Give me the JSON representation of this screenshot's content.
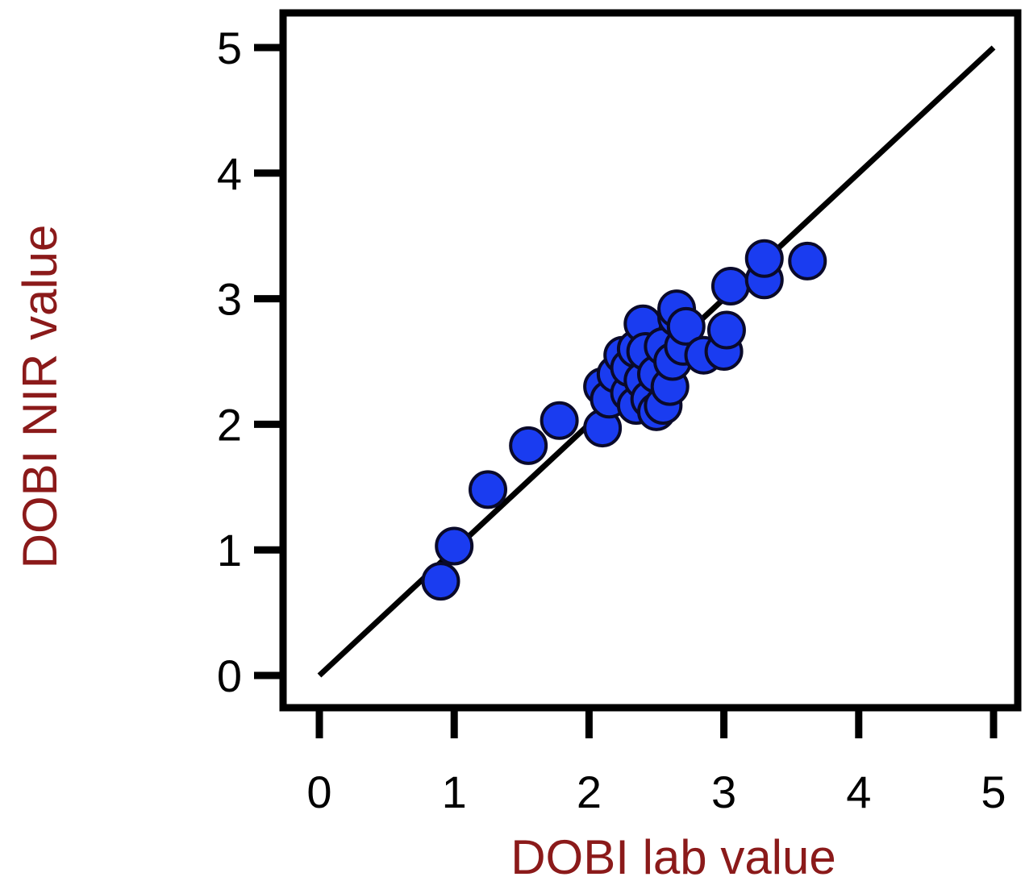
{
  "chart_data": {
    "type": "scatter",
    "title": "",
    "xlabel": "DOBI lab value",
    "ylabel": "DOBI NIR value",
    "xlim": [
      0,
      5
    ],
    "ylim": [
      0,
      5
    ],
    "xticks": [
      "0",
      "1",
      "2",
      "3",
      "4",
      "5"
    ],
    "yticks": [
      "0",
      "1",
      "2",
      "3",
      "4",
      "5"
    ],
    "grid": false,
    "legend": "none",
    "reference_line": {
      "x": [
        0,
        5
      ],
      "y": [
        0,
        5
      ],
      "color": "#000000"
    },
    "series": [
      {
        "marker_color": "#1a3cf0",
        "points": [
          [
            0.9,
            0.75
          ],
          [
            1.0,
            1.03
          ],
          [
            1.25,
            1.48
          ],
          [
            1.55,
            1.83
          ],
          [
            1.78,
            2.03
          ],
          [
            2.1,
            1.97
          ],
          [
            2.1,
            2.3
          ],
          [
            2.15,
            2.2
          ],
          [
            2.2,
            2.4
          ],
          [
            2.25,
            2.55
          ],
          [
            2.3,
            2.25
          ],
          [
            2.3,
            2.45
          ],
          [
            2.35,
            2.15
          ],
          [
            2.35,
            2.6
          ],
          [
            2.4,
            2.35
          ],
          [
            2.4,
            2.8
          ],
          [
            2.42,
            2.58
          ],
          [
            2.45,
            2.2
          ],
          [
            2.5,
            2.1
          ],
          [
            2.5,
            2.4
          ],
          [
            2.55,
            2.15
          ],
          [
            2.55,
            2.62
          ],
          [
            2.6,
            2.3
          ],
          [
            2.62,
            2.5
          ],
          [
            2.65,
            2.85
          ],
          [
            2.65,
            2.92
          ],
          [
            2.7,
            2.62
          ],
          [
            2.72,
            2.78
          ],
          [
            2.85,
            2.55
          ],
          [
            3.0,
            2.58
          ],
          [
            3.02,
            2.75
          ],
          [
            3.05,
            3.1
          ],
          [
            3.3,
            3.15
          ],
          [
            3.3,
            3.32
          ],
          [
            3.62,
            3.3
          ]
        ]
      }
    ],
    "colors": {
      "axis_label": "#8b1a1a",
      "frame": "#000000",
      "marker_fill": "#1a3cf0",
      "marker_stroke": "#0a0a2a"
    }
  }
}
